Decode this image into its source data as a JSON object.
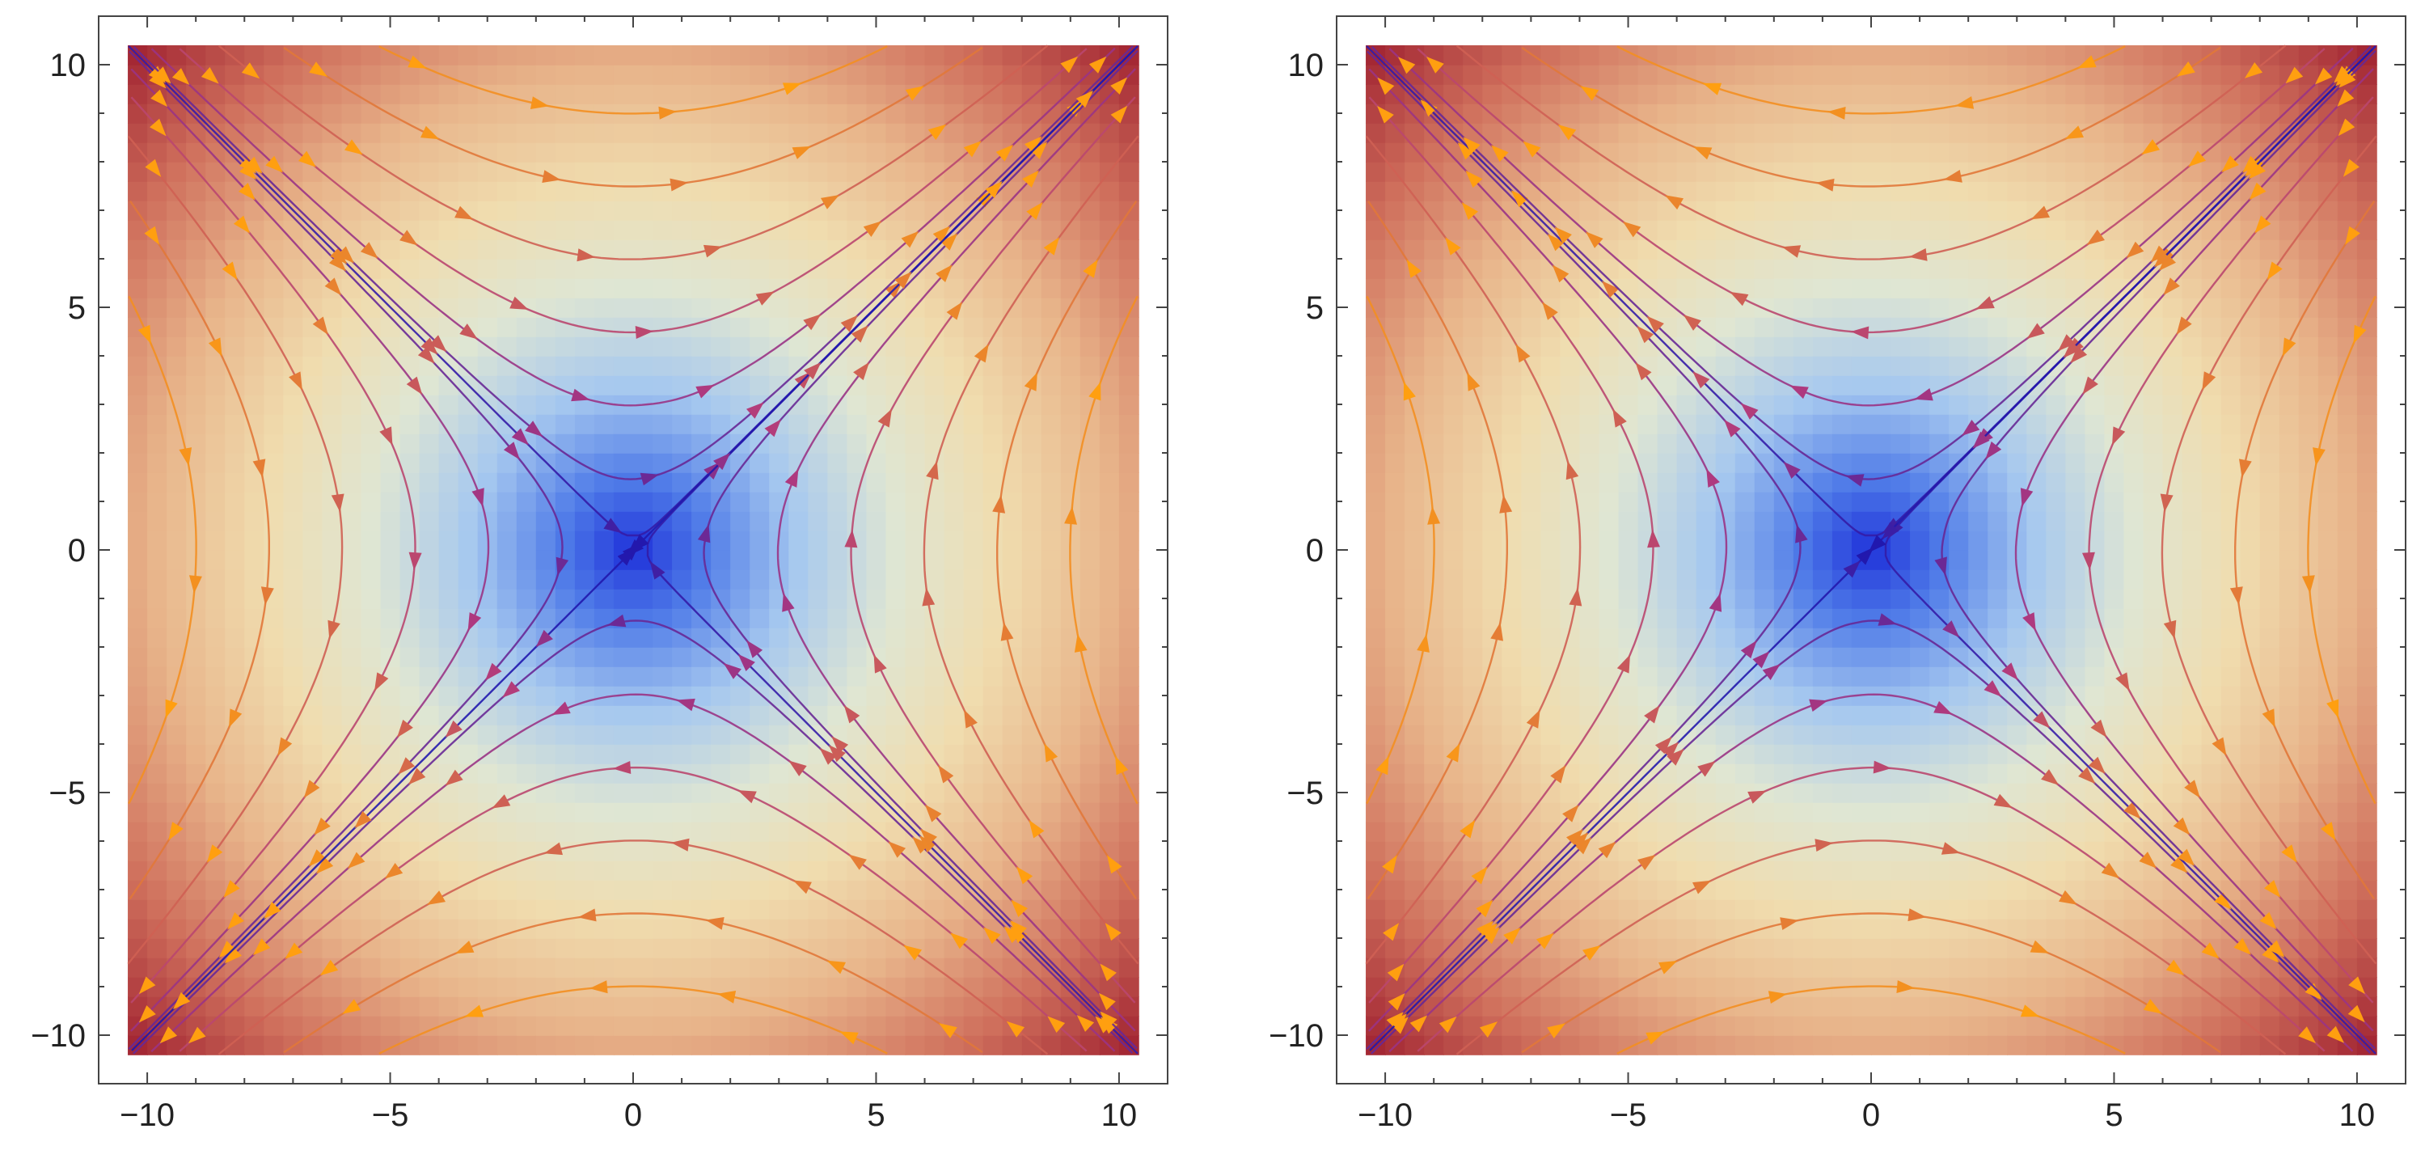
{
  "chart_data": [
    {
      "type": "streamplot",
      "field": "saddle",
      "flow": "u = y, v = x (streamlines emerge along y = x, converge along y = -x)",
      "xlim": [
        -11,
        11
      ],
      "ylim": [
        -11,
        11
      ],
      "plot_range": [
        -10.4,
        10.4
      ],
      "x_ticks": [
        "-10",
        "-5",
        "0",
        "5",
        "10"
      ],
      "x_tick_values": [
        -10,
        -5,
        0,
        5,
        10
      ],
      "y_ticks": [
        "10",
        "5",
        "0",
        "-5",
        "-10"
      ],
      "y_tick_values": [
        10,
        5,
        0,
        -5,
        -10
      ],
      "background": "field magnitude density, blue (low) to dark red (high)",
      "streamline_colors": "magnitude scaled, dark blue to purple to orange",
      "title": "",
      "xlabel": "",
      "ylabel": "",
      "legend": "none",
      "grid": false
    },
    {
      "type": "streamplot",
      "field": "saddle",
      "flow": "u = -y, v = -x (streamlines emerge along y = -x, converge along y = x)",
      "xlim": [
        -11,
        11
      ],
      "ylim": [
        -11,
        11
      ],
      "plot_range": [
        -10.4,
        10.4
      ],
      "x_ticks": [
        "-10",
        "-5",
        "0",
        "5",
        "10"
      ],
      "x_tick_values": [
        -10,
        -5,
        0,
        5,
        10
      ],
      "y_ticks": [
        "10",
        "5",
        "0",
        "-5",
        "-10"
      ],
      "y_tick_values": [
        10,
        5,
        0,
        -5,
        -10
      ],
      "background": "field magnitude density, blue (low) to dark red (high)",
      "streamline_colors": "magnitude scaled, dark blue to purple to orange",
      "title": "",
      "xlabel": "",
      "ylabel": "",
      "legend": "none",
      "grid": false
    }
  ],
  "colors": {
    "density": [
      "#1a2bd8",
      "#4f7be8",
      "#a6c8ef",
      "#dfe6d3",
      "#f0dcae",
      "#e8b48a",
      "#cf6f5c",
      "#9e1f2f"
    ],
    "stream_low": "#1a16b0",
    "stream_mid": "#b0397e",
    "stream_high": "#ff9f10"
  },
  "tick_labels": {
    "x": [
      "−10",
      "−5",
      "0",
      "5",
      "10"
    ],
    "y": [
      "10",
      "5",
      "0",
      "−5",
      "−10"
    ]
  }
}
